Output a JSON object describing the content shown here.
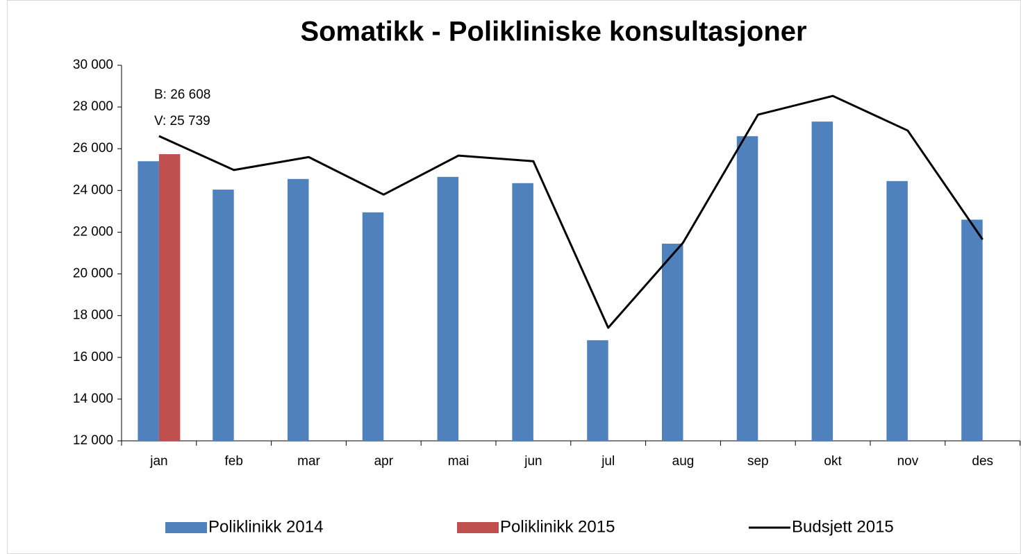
{
  "chart_data": {
    "type": "bar",
    "title": "Somatikk - Polikliniske konsultasjoner",
    "categories": [
      "jan",
      "feb",
      "mar",
      "apr",
      "mai",
      "jun",
      "jul",
      "aug",
      "sep",
      "okt",
      "nov",
      "des"
    ],
    "series": [
      {
        "name": "Poliklinikk 2014",
        "color": "#4f81bd",
        "type": "bar",
        "values": [
          25400,
          24040,
          24550,
          22950,
          24650,
          24350,
          16820,
          21450,
          26600,
          27300,
          24450,
          22600
        ]
      },
      {
        "name": "Poliklinikk 2015",
        "color": "#c0504d",
        "type": "bar",
        "values": [
          25739,
          null,
          null,
          null,
          null,
          null,
          null,
          null,
          null,
          null,
          null,
          null
        ]
      },
      {
        "name": "Budsjett 2015",
        "color": "#000000",
        "type": "line",
        "values": [
          26608,
          24980,
          25600,
          23800,
          25670,
          25400,
          17420,
          21500,
          27630,
          28530,
          26870,
          21650
        ]
      }
    ],
    "annotations": [
      "B: 26 608",
      "V: 25 739"
    ],
    "ylim": [
      12000,
      30000
    ],
    "yticks": [
      {
        "value": 12000,
        "label": "12 000"
      },
      {
        "value": 14000,
        "label": "14 000"
      },
      {
        "value": 16000,
        "label": "16 000"
      },
      {
        "value": 18000,
        "label": "18 000"
      },
      {
        "value": 20000,
        "label": "20 000"
      },
      {
        "value": 22000,
        "label": "22 000"
      },
      {
        "value": 24000,
        "label": "24 000"
      },
      {
        "value": 26000,
        "label": "26 000"
      },
      {
        "value": 28000,
        "label": "28 000"
      },
      {
        "value": 30000,
        "label": "30 000"
      }
    ],
    "grid": false,
    "legend": "bottom"
  }
}
